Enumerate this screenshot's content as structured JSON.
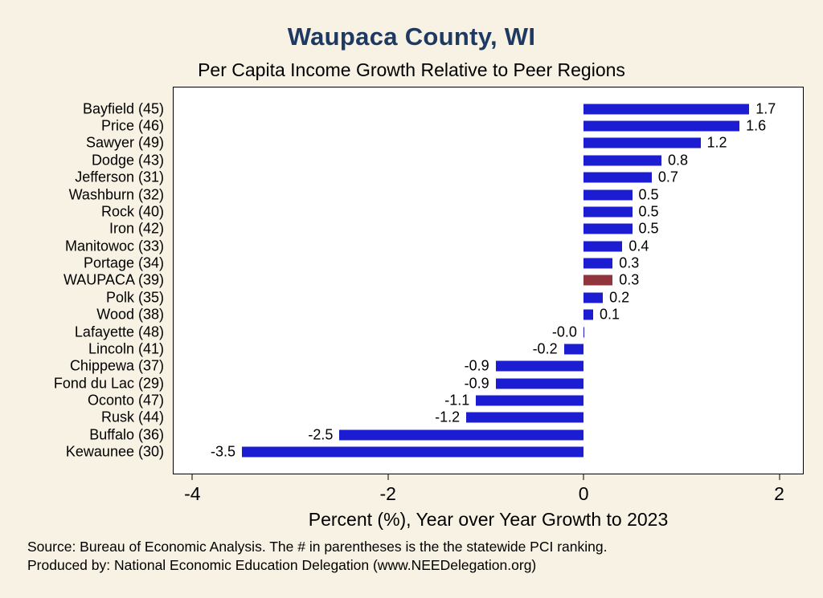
{
  "chart_data": {
    "type": "bar",
    "orientation": "horizontal",
    "title": "Waupaca County, WI",
    "subtitle": "Per Capita Income Growth Relative to Peer Regions",
    "xlabel": "Percent (%), Year over Year Growth to 2023",
    "xlim": [
      -4.2,
      2.25
    ],
    "x_ticks": [
      -4,
      -2,
      0,
      2
    ],
    "x_tick_labels": [
      "-4",
      "-2",
      "0",
      "2"
    ],
    "grid": false,
    "legend": false,
    "categories": [
      "Bayfield (45)",
      "Price (46)",
      "Sawyer (49)",
      "Dodge (43)",
      "Jefferson (31)",
      "Washburn (32)",
      "Rock (40)",
      "Iron (42)",
      "Manitowoc (33)",
      "Portage (34)",
      "WAUPACA (39)",
      "Polk (35)",
      "Wood (38)",
      "Lafayette (48)",
      "Lincoln (41)",
      "Chippewa (37)",
      "Fond du Lac (29)",
      "Oconto (47)",
      "Rusk (44)",
      "Buffalo (36)",
      "Kewaunee (30)"
    ],
    "values": [
      1.7,
      1.6,
      1.2,
      0.8,
      0.7,
      0.5,
      0.5,
      0.5,
      0.4,
      0.3,
      0.3,
      0.2,
      0.1,
      -0.0,
      -0.2,
      -0.9,
      -0.9,
      -1.1,
      -1.2,
      -2.5,
      -3.5
    ],
    "value_labels": [
      "1.7",
      "1.6",
      "1.2",
      "0.8",
      "0.7",
      "0.5",
      "0.5",
      "0.5",
      "0.4",
      "0.3",
      "0.3",
      "0.2",
      "0.1",
      "-0.0",
      "-0.2",
      "-0.9",
      "-0.9",
      "-1.1",
      "-1.2",
      "-2.5",
      "-3.5"
    ],
    "highlight_category": "WAUPACA (39)",
    "bar_color": "#1c1cd2",
    "highlight_color": "#90353B",
    "plot_background": "#ffffff",
    "page_background": "#f7f2e3",
    "title_color": "#1e3a63"
  },
  "footer": {
    "source": "Source: Bureau of Economic Analysis. The # in parentheses is the the statewide PCI ranking.",
    "produced_by": "Produced by: National Economic Education Delegation (www.NEEDelegation.org)"
  }
}
